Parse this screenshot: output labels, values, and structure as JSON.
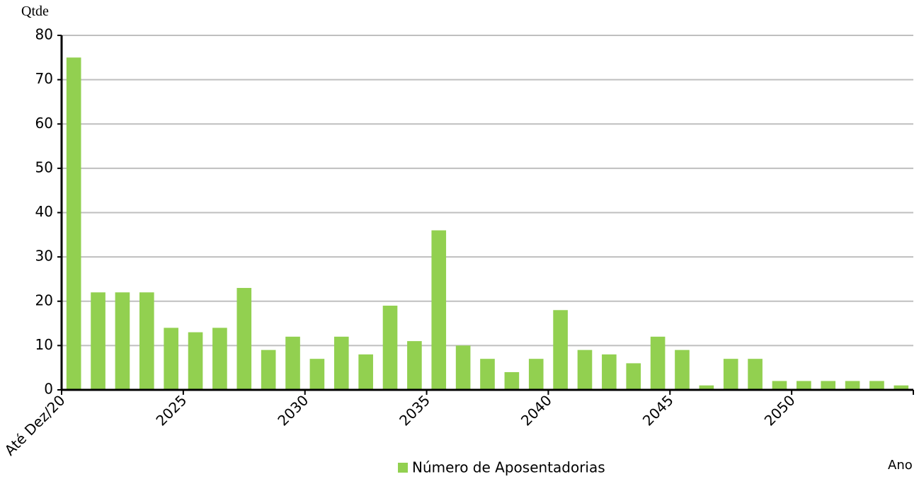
{
  "chart_data": {
    "type": "bar",
    "y_label": "Qtde",
    "x_label": "Ano",
    "categories": [
      "Até Dez/20",
      null,
      null,
      null,
      null,
      "2025",
      null,
      null,
      null,
      null,
      "2030",
      null,
      null,
      null,
      null,
      "2035",
      null,
      null,
      null,
      null,
      "2040",
      null,
      null,
      null,
      null,
      "2045",
      null,
      null,
      null,
      null,
      "2050",
      null,
      null,
      null,
      null
    ],
    "series": [
      {
        "name": "Número de Aposentadorias",
        "color": "#92d050",
        "values": [
          75,
          22,
          22,
          22,
          14,
          13,
          14,
          23,
          9,
          12,
          7,
          12,
          8,
          19,
          11,
          36,
          10,
          7,
          4,
          7,
          18,
          9,
          8,
          6,
          12,
          9,
          1,
          7,
          7,
          2,
          2,
          2,
          2,
          2,
          1
        ]
      }
    ],
    "ylim": [
      0,
      80
    ],
    "yticks": [
      0,
      10,
      20,
      30,
      40,
      50,
      60,
      70,
      80
    ],
    "grid": true
  }
}
